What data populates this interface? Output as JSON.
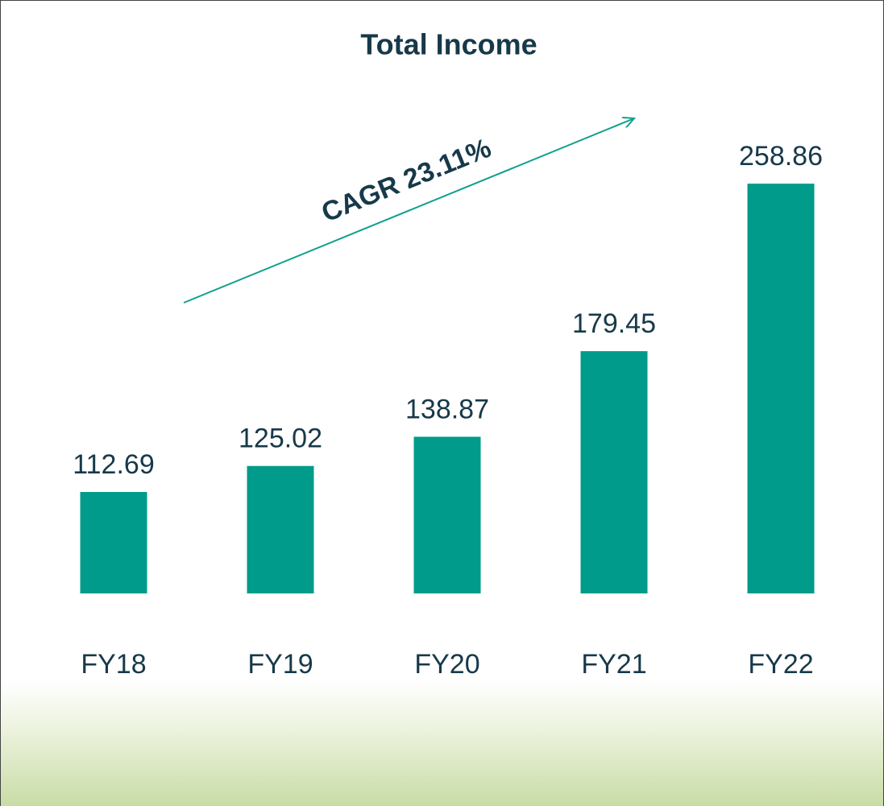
{
  "chart_data": {
    "type": "bar",
    "title": "Total Income",
    "categories": [
      "FY18",
      "FY19",
      "FY20",
      "FY21",
      "FY22"
    ],
    "values": [
      112.69,
      125.02,
      138.87,
      179.45,
      258.86
    ],
    "color": "#009b8a",
    "ylim": [
      64.6,
      300
    ],
    "annotation": "CAGR 23.11%"
  }
}
